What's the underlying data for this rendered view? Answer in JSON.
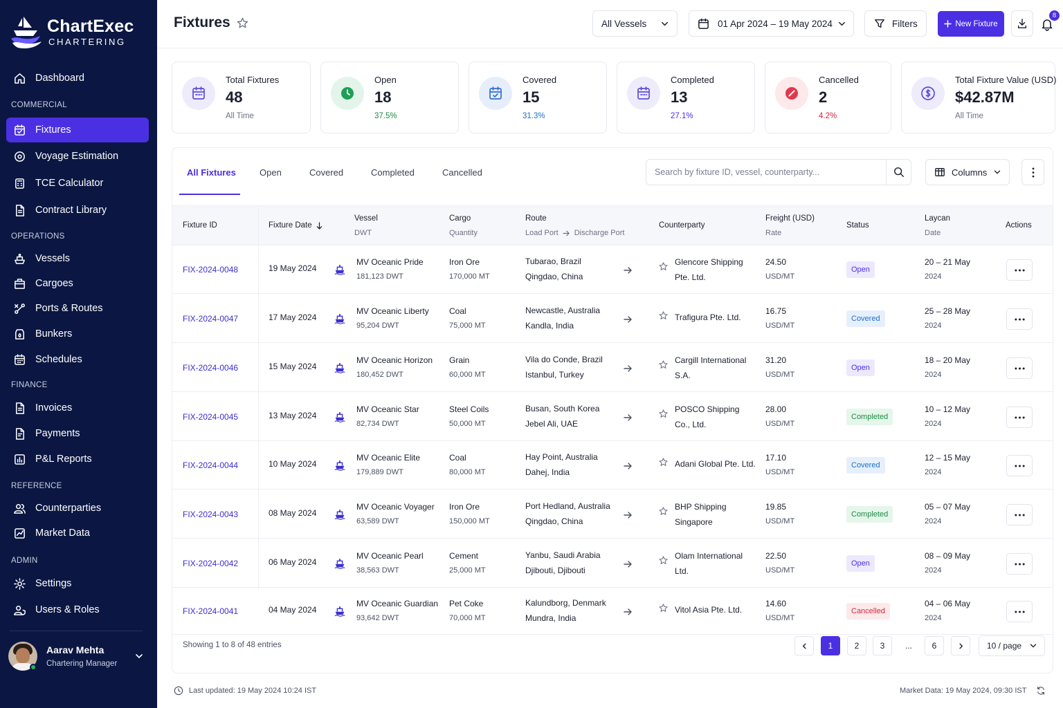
{
  "brand": {
    "name": "ChartExec",
    "tagline": "CHARTERING"
  },
  "nav": {
    "dashboard": "Dashboard",
    "sections": {
      "commercial": "COMMERCIAL",
      "operations": "OPERATIONS",
      "finance": "FINANCE",
      "reference": "REFERENCE",
      "admin": "ADMIN"
    },
    "commercial": [
      "Fixtures",
      "Voyage Estimation",
      "TCE Calculator",
      "Contract Library"
    ],
    "operations": [
      "Vessels",
      "Cargoes",
      "Ports & Routes",
      "Bunkers",
      "Schedules"
    ],
    "finance": [
      "Invoices",
      "Payments",
      "P&L Reports"
    ],
    "reference": [
      "Counterparties",
      "Market Data"
    ],
    "admin": [
      "Settings",
      "Users & Roles"
    ],
    "active": "Fixtures"
  },
  "user": {
    "name": "Aarav Mehta",
    "role": "Chartering Manager"
  },
  "header": {
    "title": "Fixtures",
    "vessel_filter": "All Vessels",
    "date_range": "01 Apr 2024 – 19 May 2024",
    "filters_label": "Filters",
    "new_label": "New Fixture",
    "notifications_count": "8"
  },
  "stats": [
    {
      "label": "Total Fixtures",
      "value": "48",
      "sub": "All Time",
      "icon": "calendar-icon",
      "color": "#5b4ce0",
      "bg": "#eeecfb",
      "subColor": "#6b7185"
    },
    {
      "label": "Open",
      "value": "18",
      "sub": "37.5%",
      "icon": "clock-icon",
      "color": "#1e9f55",
      "bg": "#e3f5ea",
      "subColor": "#1d8a45"
    },
    {
      "label": "Covered",
      "value": "15",
      "sub": "31.3%",
      "icon": "calendar-check-icon",
      "color": "#2f6fd0",
      "bg": "#e6eefb",
      "subColor": "#1f6fc9"
    },
    {
      "label": "Completed",
      "value": "13",
      "sub": "27.1%",
      "icon": "calendar-icon",
      "color": "#5b4ce0",
      "bg": "#eeecfb",
      "subColor": "#4b2fe3"
    },
    {
      "label": "Cancelled",
      "value": "2",
      "sub": "4.2%",
      "icon": "cancel-icon",
      "color": "#e0394e",
      "bg": "#fde8ea",
      "subColor": "#d6263b"
    },
    {
      "label": "Total Fixture Value (USD)",
      "value": "$42.87M",
      "sub": "All Time",
      "icon": "dollar-icon",
      "color": "#5b4ce0",
      "bg": "#eeecfb",
      "subColor": "#6b7185"
    }
  ],
  "tabs": [
    "All Fixtures",
    "Open",
    "Covered",
    "Completed",
    "Cancelled"
  ],
  "search": {
    "placeholder": "Search by fixture ID, vessel, counterparty..."
  },
  "columns_label": "Columns",
  "table": {
    "headers": {
      "fixture_id": "Fixture ID",
      "fixture_date": "Fixture Date",
      "vessel": "Vessel",
      "vessel_sub": "DWT",
      "cargo": "Cargo",
      "cargo_sub": "Quantity",
      "route": "Route",
      "route_load": "Load Port",
      "route_discharge": "Discharge Port",
      "counterparty": "Counterparty",
      "freight": "Freight (USD)",
      "freight_sub": "Rate",
      "status": "Status",
      "laycan": "Laycan",
      "laycan_sub": "Date",
      "actions": "Actions"
    },
    "rows": [
      {
        "id": "FIX-2024-0048",
        "date": "19 May 2024",
        "vessel": "MV Oceanic Pride",
        "dwt": "181,123 DWT",
        "cargo": "Iron Ore",
        "qty": "170,000 MT",
        "load": "Tubarao, Brazil",
        "discharge": "Qingdao, China",
        "cp1": "Glencore Shipping",
        "cp2": "Pte. Ltd.",
        "freight": "24.50",
        "unit": "USD/MT",
        "status": "Open",
        "laycan": "20 – 21 May",
        "year": "2024"
      },
      {
        "id": "FIX-2024-0047",
        "date": "17 May 2024",
        "vessel": "MV Oceanic Liberty",
        "dwt": "95,204 DWT",
        "cargo": "Coal",
        "qty": "75,000 MT",
        "load": "Newcastle, Australia",
        "discharge": "Kandla, India",
        "cp1": "Trafigura Pte. Ltd.",
        "cp2": "",
        "freight": "16.75",
        "unit": "USD/MT",
        "status": "Covered",
        "laycan": "25 – 28 May",
        "year": "2024"
      },
      {
        "id": "FIX-2024-0046",
        "date": "15 May 2024",
        "vessel": "MV Oceanic Horizon",
        "dwt": "180,452 DWT",
        "cargo": "Grain",
        "qty": "60,000 MT",
        "load": "Vila do Conde, Brazil",
        "discharge": "Istanbul, Turkey",
        "cp1": "Cargill International",
        "cp2": "S.A.",
        "freight": "31.20",
        "unit": "USD/MT",
        "status": "Open",
        "laycan": "18 – 20 May",
        "year": "2024"
      },
      {
        "id": "FIX-2024-0045",
        "date": "13 May 2024",
        "vessel": "MV Oceanic Star",
        "dwt": "82,734 DWT",
        "cargo": "Steel Coils",
        "qty": "50,000 MT",
        "load": "Busan, South Korea",
        "discharge": "Jebel Ali, UAE",
        "cp1": "POSCO Shipping",
        "cp2": "Co., Ltd.",
        "freight": "28.00",
        "unit": "USD/MT",
        "status": "Completed",
        "laycan": "10 – 12 May",
        "year": "2024"
      },
      {
        "id": "FIX-2024-0044",
        "date": "10 May 2024",
        "vessel": "MV Oceanic Elite",
        "dwt": "179,889 DWT",
        "cargo": "Coal",
        "qty": "80,000 MT",
        "load": "Hay Point, Australia",
        "discharge": "Dahej, India",
        "cp1": "Adani Global Pte. Ltd.",
        "cp2": "",
        "freight": "17.10",
        "unit": "USD/MT",
        "status": "Covered",
        "laycan": "12 – 15 May",
        "year": "2024"
      },
      {
        "id": "FIX-2024-0043",
        "date": "08 May 2024",
        "vessel": "MV Oceanic Voyager",
        "dwt": "63,589 DWT",
        "cargo": "Iron Ore",
        "qty": "150,000 MT",
        "load": "Port Hedland, Australia",
        "discharge": "Qingdao, China",
        "cp1": "BHP Shipping",
        "cp2": "Singapore",
        "freight": "19.85",
        "unit": "USD/MT",
        "status": "Completed",
        "laycan": "05 – 07 May",
        "year": "2024"
      },
      {
        "id": "FIX-2024-0042",
        "date": "06 May 2024",
        "vessel": "MV Oceanic Pearl",
        "dwt": "38,563 DWT",
        "cargo": "Cement",
        "qty": "25,000 MT",
        "load": "Yanbu, Saudi Arabia",
        "discharge": "Djibouti, Djibouti",
        "cp1": "Olam International",
        "cp2": "Ltd.",
        "freight": "22.50",
        "unit": "USD/MT",
        "status": "Open",
        "laycan": "08 – 09 May",
        "year": "2024"
      },
      {
        "id": "FIX-2024-0041",
        "date": "04 May 2024",
        "vessel": "MV Oceanic Guardian",
        "dwt": "93,642 DWT",
        "cargo": "Pet Coke",
        "qty": "70,000 MT",
        "load": "Kalundborg, Denmark",
        "discharge": "Mundra, India",
        "cp1": "Vitol Asia Pte. Ltd.",
        "cp2": "",
        "freight": "14.60",
        "unit": "USD/MT",
        "status": "Cancelled",
        "laycan": "04 – 06 May",
        "year": "2024"
      }
    ]
  },
  "pagination": {
    "showing": "Showing 1 to 8 of 48 entries",
    "pages": [
      "1",
      "2",
      "3",
      "...",
      "6"
    ],
    "current": "1",
    "per_page": "10 / page"
  },
  "footer": {
    "updated": "Last updated: 19 May 2024 10:24 IST",
    "market": "Market Data: 19 May 2024, 09:30 IST"
  }
}
